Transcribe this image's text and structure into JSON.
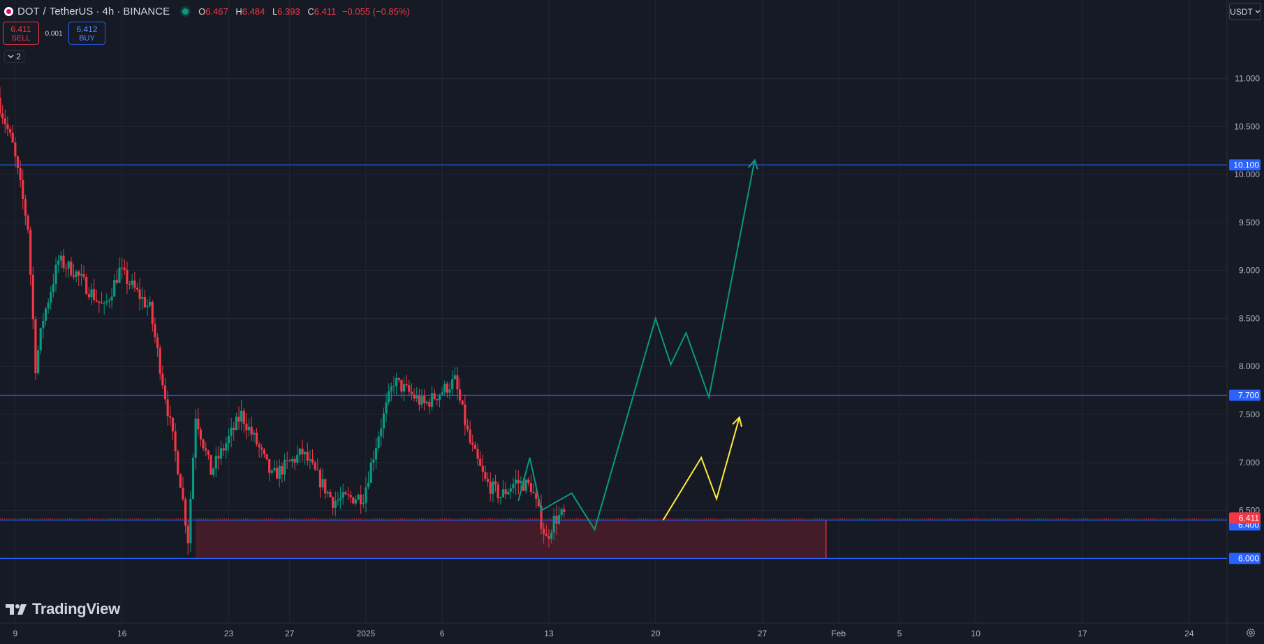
{
  "header": {
    "symbol": "DOT",
    "separator1": "/",
    "quote": "TetherUS",
    "interval": "· 4h ·",
    "exchange": "BINANCE",
    "open_label": "O",
    "open": "6.467",
    "high_label": "H",
    "high": "6.484",
    "low_label": "L",
    "low": "6.393",
    "close_label": "C",
    "close": "6.411",
    "change": "−0.055 (−0.85%)"
  },
  "trade": {
    "sell_price": "6.411",
    "sell_label": "SELL",
    "spread": "0.001",
    "buy_price": "6.412",
    "buy_label": "BUY"
  },
  "indicators_toggle": {
    "count": "2",
    "icon": "chevron-down-icon"
  },
  "currency_select": {
    "label": "USDT",
    "icon": "chevron-down-icon"
  },
  "branding": {
    "name": "TradingView",
    "icon": "tradingview-logo-icon"
  },
  "settings_icon": "gear-icon",
  "colors": {
    "background": "#161a25",
    "up": "#089981",
    "down": "#f23645",
    "level_line": "#2962ff",
    "zone_fill": "#4a1f2a",
    "projection_green": "#089981",
    "projection_yellow": "#ffeb3b",
    "label_blue": "#2962ff",
    "label_red": "#f23645"
  },
  "chart_data": {
    "type": "candlestick",
    "timeframe": "4h",
    "y_axis": {
      "range": [
        5.45,
        11.6
      ],
      "ticks": [
        "11.000",
        "10.500",
        "10.000",
        "9.500",
        "9.000",
        "8.500",
        "8.000",
        "7.500",
        "7.000",
        "6.500"
      ],
      "tick_values": [
        11.0,
        10.5,
        10.0,
        9.5,
        9.0,
        8.5,
        8.0,
        7.5,
        7.0,
        6.5
      ]
    },
    "x_axis": {
      "ticks": [
        "9",
        "16",
        "23",
        "27",
        "2025",
        "6",
        "13",
        "20",
        "27",
        "Feb",
        "5",
        "10",
        "17",
        "24"
      ],
      "tick_dates": [
        "2024-12-09",
        "2024-12-16",
        "2024-12-23",
        "2024-12-27",
        "2025-01-01",
        "2025-01-06",
        "2025-01-13",
        "2025-01-20",
        "2025-01-27",
        "2025-02-01",
        "2025-02-05",
        "2025-02-10",
        "2025-02-17",
        "2025-02-24"
      ],
      "range": [
        "2024-12-08",
        "2025-03-01"
      ]
    },
    "grid": true,
    "price_trend_anchors": [
      {
        "date": "2024-12-08",
        "price": 10.8
      },
      {
        "date": "2024-12-09",
        "price": 10.3
      },
      {
        "date": "2024-12-10",
        "price": 9.45
      },
      {
        "date": "2024-12-10T12:00",
        "price": 8.0
      },
      {
        "date": "2024-12-11",
        "price": 8.5
      },
      {
        "date": "2024-12-12",
        "price": 9.1
      },
      {
        "date": "2024-12-13",
        "price": 9.0
      },
      {
        "date": "2024-12-15",
        "price": 8.6
      },
      {
        "date": "2024-12-16",
        "price": 9.0
      },
      {
        "date": "2024-12-18",
        "price": 8.6
      },
      {
        "date": "2024-12-19",
        "price": 7.7
      },
      {
        "date": "2024-12-20",
        "price": 6.8
      },
      {
        "date": "2024-12-20T12:00",
        "price": 6.2
      },
      {
        "date": "2024-12-21",
        "price": 7.5
      },
      {
        "date": "2024-12-22",
        "price": 6.9
      },
      {
        "date": "2024-12-24",
        "price": 7.5
      },
      {
        "date": "2024-12-25",
        "price": 7.2
      },
      {
        "date": "2024-12-26",
        "price": 6.85
      },
      {
        "date": "2024-12-28",
        "price": 7.1
      },
      {
        "date": "2024-12-30",
        "price": 6.6
      },
      {
        "date": "2025-01-01",
        "price": 6.65
      },
      {
        "date": "2025-01-02",
        "price": 7.3
      },
      {
        "date": "2025-01-03",
        "price": 7.85
      },
      {
        "date": "2025-01-05",
        "price": 7.6
      },
      {
        "date": "2025-01-07",
        "price": 7.85
      },
      {
        "date": "2025-01-08",
        "price": 7.2
      },
      {
        "date": "2025-01-09",
        "price": 6.8
      },
      {
        "date": "2025-01-10",
        "price": 6.65
      },
      {
        "date": "2025-01-11",
        "price": 6.8
      },
      {
        "date": "2025-01-12",
        "price": 6.75
      },
      {
        "date": "2025-01-13",
        "price": 6.2
      },
      {
        "date": "2025-01-13T12:00",
        "price": 6.4
      },
      {
        "date": "2025-01-14",
        "price": 6.45
      }
    ],
    "horizontal_levels": [
      {
        "price": 10.1,
        "label": "10.100"
      },
      {
        "price": 7.7,
        "label": "7.700"
      },
      {
        "price": 6.4,
        "label": "6.400"
      },
      {
        "price": 6.0,
        "label": "6.000"
      }
    ],
    "last_price": {
      "price": 6.411,
      "label": "6.411"
    },
    "demand_zone": {
      "price_top": 6.4,
      "price_bottom": 6.0,
      "start": "2024-12-20",
      "end": "2025-01-31"
    },
    "projections": [
      {
        "name": "green",
        "points": [
          {
            "date": "2025-01-11",
            "price": 6.6
          },
          {
            "date": "2025-01-11T18:00",
            "price": 7.05
          },
          {
            "date": "2025-01-12T12:00",
            "price": 6.5
          },
          {
            "date": "2025-01-14T12:00",
            "price": 6.68
          },
          {
            "date": "2025-01-16",
            "price": 6.3
          },
          {
            "date": "2025-01-20",
            "price": 8.5
          },
          {
            "date": "2025-01-21",
            "price": 8.02
          },
          {
            "date": "2025-01-22",
            "price": 8.35
          },
          {
            "date": "2025-01-23T12:00",
            "price": 7.68
          },
          {
            "date": "2025-01-26T12:00",
            "price": 10.15
          }
        ]
      },
      {
        "name": "yellow",
        "points": [
          {
            "date": "2025-01-20T12:00",
            "price": 6.4
          },
          {
            "date": "2025-01-23",
            "price": 7.05
          },
          {
            "date": "2025-01-24",
            "price": 6.62
          },
          {
            "date": "2025-01-25T12:00",
            "price": 7.47
          }
        ]
      }
    ]
  }
}
